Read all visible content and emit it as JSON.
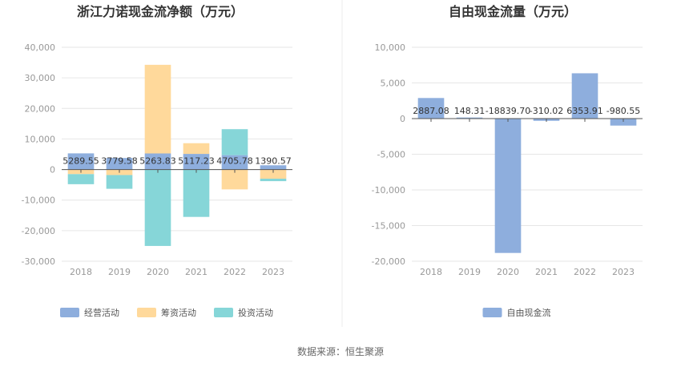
{
  "source_text": "数据来源：恒生聚源",
  "chart_data": [
    {
      "type": "bar",
      "stacked": true,
      "title": "浙江力诺现金流净额（万元）",
      "categories": [
        "2018",
        "2019",
        "2020",
        "2021",
        "2022",
        "2023"
      ],
      "ylim": [
        -30000,
        40000
      ],
      "yticks": [
        40000,
        30000,
        20000,
        10000,
        0,
        -10000,
        -20000,
        -30000
      ],
      "ytick_labels": [
        "40,000",
        "30,000",
        "20,000",
        "10,000",
        "0",
        "-10,000",
        "-20,000",
        "-30,000"
      ],
      "grid": true,
      "legend_position": "bottom",
      "series": [
        {
          "name": "经营活动",
          "color": "#8eaedd",
          "values": [
            5289.55,
            3779.58,
            5263.83,
            5117.23,
            4705.78,
            1390.57
          ]
        },
        {
          "name": "筹资活动",
          "color": "#ffd99b",
          "values": [
            -1500,
            -1800,
            29000,
            3500,
            -6500,
            -3000
          ]
        },
        {
          "name": "投资活动",
          "color": "#86d6d8",
          "values": [
            -3300,
            -4500,
            -25000,
            -15500,
            8500,
            -800
          ]
        }
      ],
      "data_labels": [
        "5289.55",
        "3779.58",
        "5263.83",
        "5117.23",
        "4705.78",
        "1390.57"
      ]
    },
    {
      "type": "bar",
      "title": "自由现金流量（万元）",
      "categories": [
        "2018",
        "2019",
        "2020",
        "2021",
        "2022",
        "2023"
      ],
      "ylim": [
        -20000,
        10000
      ],
      "yticks": [
        10000,
        5000,
        0,
        -5000,
        -10000,
        -15000,
        -20000
      ],
      "ytick_labels": [
        "10,000",
        "5,000",
        "0",
        "-5,000",
        "-10,000",
        "-15,000",
        "-20,000"
      ],
      "grid": true,
      "legend_position": "bottom",
      "series": [
        {
          "name": "自由现金流",
          "color": "#8eaedd",
          "values": [
            2887.08,
            148.31,
            -18839.7,
            -310.02,
            6353.91,
            -980.55
          ]
        }
      ],
      "data_labels": [
        "2887.08",
        "148.31",
        "-18839.70",
        "-310.02",
        "6353.91",
        "-980.55"
      ]
    }
  ]
}
